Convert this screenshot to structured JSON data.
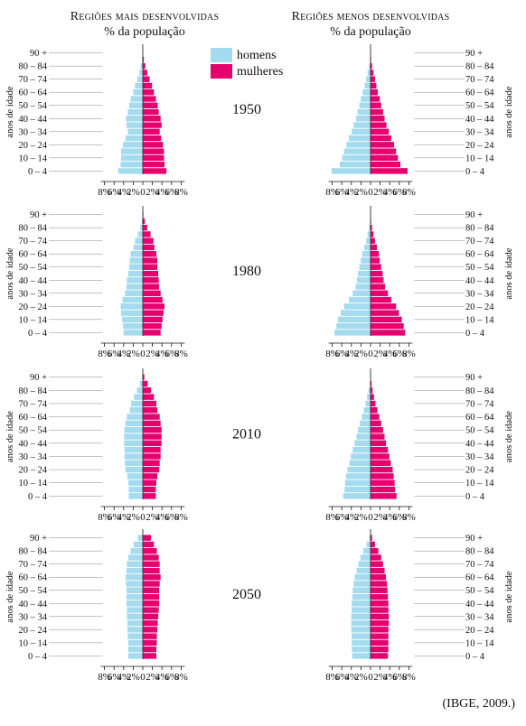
{
  "header": {
    "left_title": "Regiões mais desenvolvidas",
    "right_title": "Regiões menos desenvolvidas",
    "subtitle": "% da população"
  },
  "legend": [
    {
      "label": "homens",
      "color": "#a5dbef"
    },
    {
      "label": "mulheres",
      "color": "#e5006e"
    }
  ],
  "source": "(IBGE, 2009.)",
  "colors": {
    "men": "#a5dbef",
    "women": "#e5006e",
    "axis": "#111111"
  },
  "chart_data": {
    "type": "bar",
    "orientation": "horizontal",
    "ylabel": "anos de idade",
    "categories": [
      "0 – 4",
      "5 – 9",
      "10 – 14",
      "15 – 19",
      "20 – 24",
      "25 – 29",
      "30 – 34",
      "35 – 39",
      "40 – 44",
      "45 – 49",
      "50 – 54",
      "55 – 59",
      "60 – 64",
      "65 – 69",
      "70 – 74",
      "75 – 79",
      "80 – 84",
      "85 – 89",
      "90 +"
    ],
    "category_labels_shown": [
      "0 – 4",
      "10 – 14",
      "20 – 24",
      "30 – 34",
      "40 – 44",
      "50 – 54",
      "60 – 64",
      "70 – 74",
      "80 – 84",
      "90 +"
    ],
    "x_ticks": [
      "8%",
      "6%",
      "4%",
      "2%",
      "0",
      "2%",
      "4%",
      "6%",
      "8%"
    ],
    "xlim": [
      -8,
      8
    ],
    "years": [
      "1950",
      "1980",
      "2010",
      "2050"
    ],
    "panels": [
      {
        "region": "Regiões mais desenvolvidas",
        "year": "1950",
        "men": [
          5.2,
          4.7,
          4.6,
          4.6,
          4.2,
          3.7,
          3.2,
          3.5,
          3.6,
          3.2,
          2.9,
          2.6,
          2.1,
          1.7,
          1.2,
          0.8,
          0.5,
          0.2,
          0.1
        ],
        "women": [
          5.0,
          4.6,
          4.5,
          4.5,
          4.3,
          3.9,
          3.6,
          4.0,
          3.8,
          3.4,
          3.2,
          2.8,
          2.4,
          2.0,
          1.5,
          1.0,
          0.6,
          0.3,
          0.1
        ]
      },
      {
        "region": "Regiões menos desenvolvidas",
        "year": "1950",
        "men": [
          8.2,
          6.5,
          6.0,
          5.6,
          5.1,
          4.6,
          4.0,
          3.6,
          3.1,
          2.8,
          2.4,
          2.1,
          1.7,
          1.3,
          1.0,
          0.7,
          0.4,
          0.2,
          0.1
        ],
        "women": [
          7.8,
          6.3,
          5.8,
          5.4,
          5.0,
          4.4,
          3.9,
          3.4,
          3.0,
          2.7,
          2.3,
          2.0,
          1.6,
          1.3,
          1.0,
          0.7,
          0.4,
          0.2,
          0.1
        ]
      },
      {
        "region": "Regiões mais desenvolvidas",
        "year": "1980",
        "men": [
          4.1,
          4.2,
          4.4,
          4.6,
          4.7,
          4.3,
          3.8,
          3.5,
          3.4,
          3.1,
          2.9,
          2.8,
          2.6,
          2.0,
          1.7,
          1.1,
          0.6,
          0.3,
          0.1
        ],
        "women": [
          3.8,
          4.0,
          4.2,
          4.4,
          4.6,
          4.2,
          3.8,
          3.5,
          3.4,
          3.3,
          3.1,
          3.1,
          2.9,
          2.5,
          2.3,
          1.7,
          1.0,
          0.5,
          0.2
        ]
      },
      {
        "region": "Regiões menos desenvolvidas",
        "year": "1980",
        "men": [
          7.6,
          7.2,
          6.9,
          6.3,
          5.6,
          4.6,
          3.8,
          3.2,
          2.9,
          2.7,
          2.4,
          2.1,
          1.8,
          1.4,
          1.0,
          0.7,
          0.4,
          0.2,
          0.1
        ],
        "women": [
          7.3,
          7.0,
          6.6,
          6.0,
          5.4,
          4.4,
          3.7,
          3.1,
          2.8,
          2.6,
          2.3,
          2.0,
          1.8,
          1.4,
          1.0,
          0.7,
          0.4,
          0.2,
          0.1
        ]
      },
      {
        "region": "Regiões mais desenvolvidas",
        "year": "2010",
        "men": [
          3.0,
          3.0,
          3.1,
          3.3,
          3.7,
          3.8,
          3.9,
          3.9,
          4.0,
          4.0,
          3.9,
          3.7,
          3.4,
          2.8,
          2.5,
          1.9,
          1.3,
          0.7,
          0.2
        ],
        "women": [
          2.8,
          2.8,
          2.9,
          3.1,
          3.5,
          3.6,
          3.8,
          3.8,
          4.0,
          4.0,
          4.0,
          3.8,
          3.6,
          3.1,
          2.9,
          2.4,
          1.8,
          1.1,
          0.4
        ]
      },
      {
        "region": "Regiões menos desenvolvidas",
        "year": "2010",
        "men": [
          5.8,
          5.5,
          5.4,
          5.2,
          4.9,
          4.5,
          4.2,
          3.8,
          3.4,
          3.0,
          2.7,
          2.3,
          1.9,
          1.5,
          1.1,
          0.8,
          0.5,
          0.2,
          0.1
        ],
        "women": [
          5.5,
          5.2,
          5.1,
          4.9,
          4.7,
          4.3,
          4.0,
          3.7,
          3.3,
          3.0,
          2.7,
          2.3,
          1.9,
          1.5,
          1.1,
          0.8,
          0.5,
          0.3,
          0.1
        ]
      },
      {
        "region": "Regiões mais desenvolvidas",
        "year": "2050",
        "men": [
          3.1,
          3.1,
          3.1,
          3.2,
          3.3,
          3.3,
          3.4,
          3.4,
          3.5,
          3.5,
          3.5,
          3.6,
          3.7,
          3.5,
          3.4,
          3.1,
          2.6,
          2.0,
          1.1
        ],
        "women": [
          2.9,
          2.9,
          3.0,
          3.0,
          3.1,
          3.2,
          3.3,
          3.4,
          3.5,
          3.5,
          3.5,
          3.6,
          3.8,
          3.6,
          3.6,
          3.4,
          3.0,
          2.4,
          1.8
        ]
      },
      {
        "region": "Regiões menos desenvolvidas",
        "year": "2050",
        "men": [
          3.9,
          4.0,
          4.0,
          4.0,
          4.1,
          4.1,
          4.1,
          4.0,
          4.0,
          3.9,
          3.8,
          3.6,
          3.4,
          3.0,
          2.6,
          2.2,
          1.6,
          0.9,
          0.3
        ],
        "women": [
          3.7,
          3.8,
          3.8,
          3.8,
          3.8,
          3.9,
          3.9,
          3.8,
          3.8,
          3.7,
          3.6,
          3.5,
          3.3,
          3.0,
          2.7,
          2.3,
          1.7,
          1.0,
          0.4
        ]
      }
    ]
  }
}
